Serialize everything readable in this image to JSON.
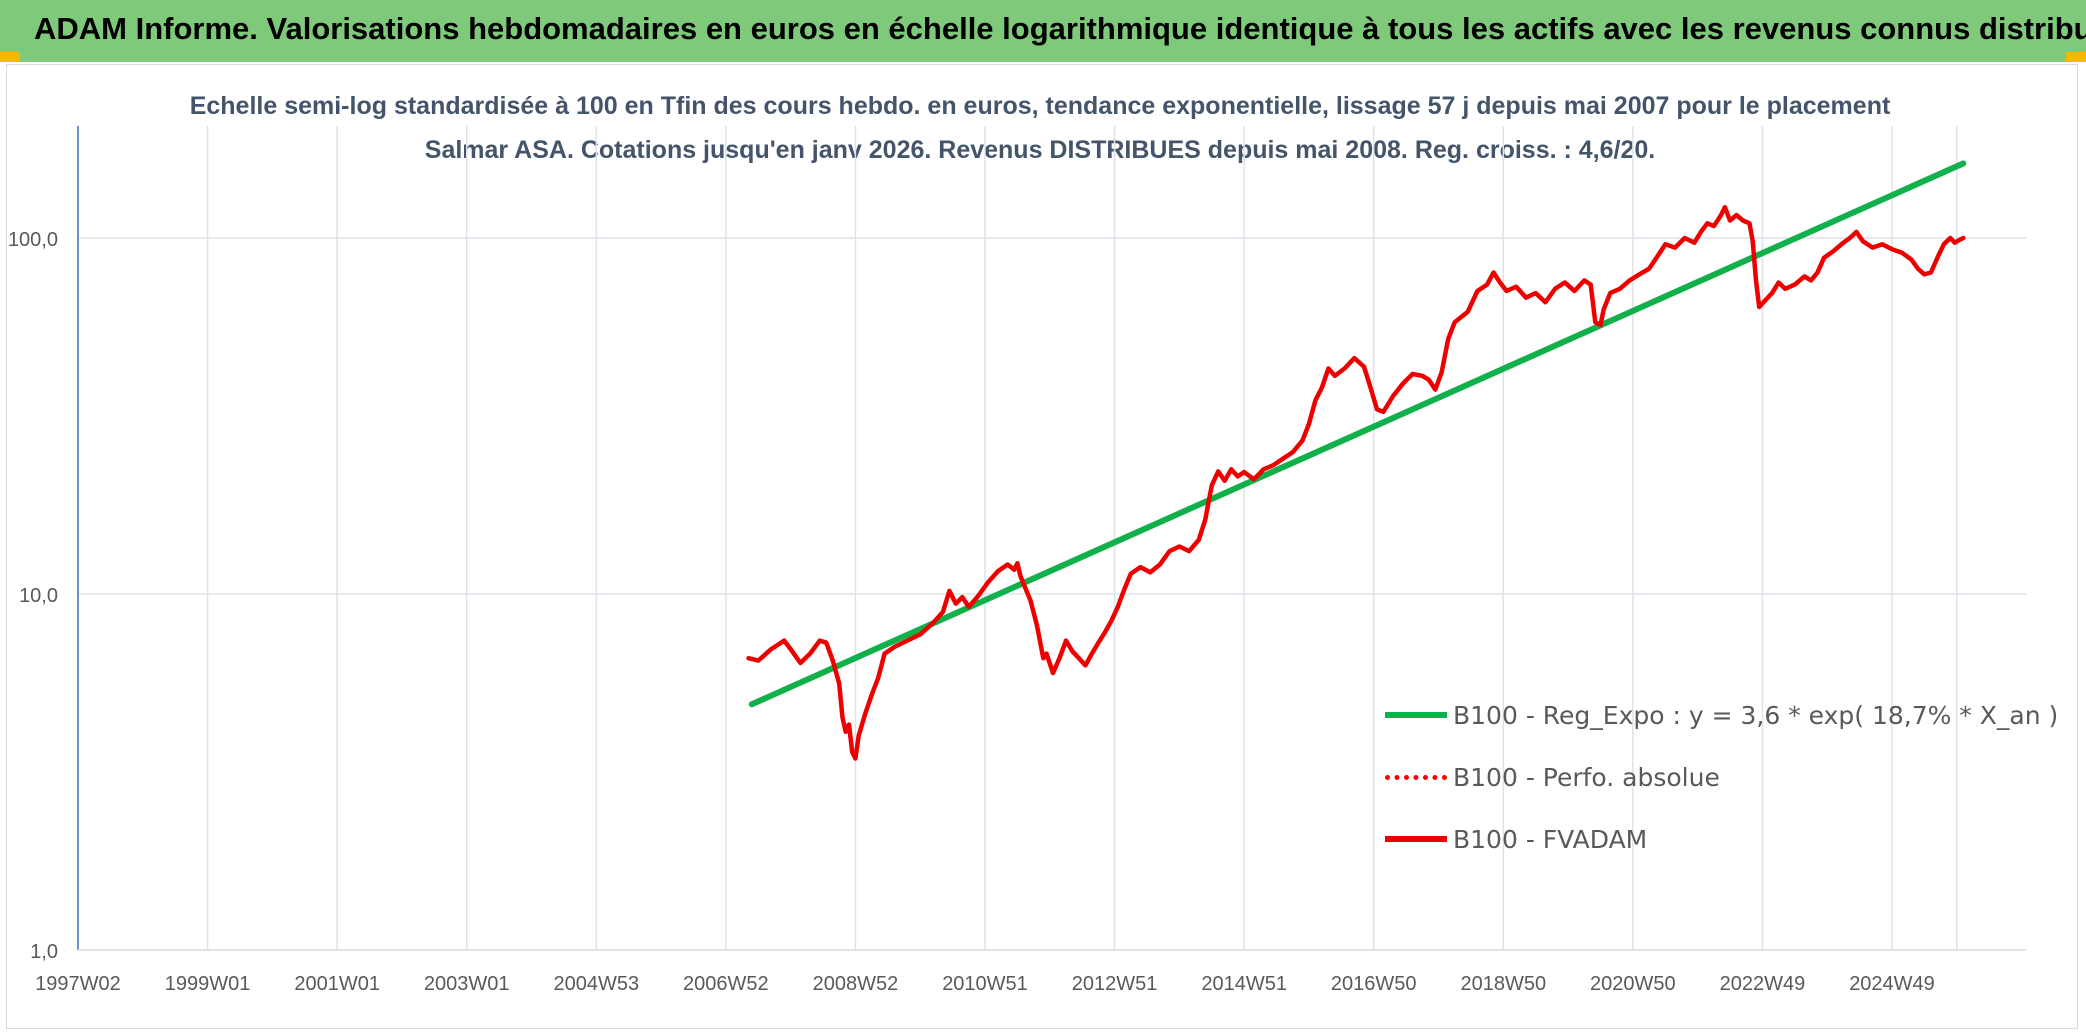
{
  "header": {
    "title": "ADAM Informe. Valorisations hebdomadaires en euros en échelle logarithmique identique à tous les actifs avec les revenus connus distribués"
  },
  "colors": {
    "header_bg": "#7ec97a",
    "trend": "#10b04a",
    "fvadam": "#ee0000",
    "perfo": "#ff0000",
    "grid": "#dde3ea",
    "axis": "#4472c4"
  },
  "chart_data": {
    "type": "line",
    "title": "Echelle semi-log standardisée à 100 en Tfin des cours hebdo. en euros, tendance exponentielle, lissage 57 j depuis mai 2007 pour le placement Salmar ASA. Cotations jusqu'en janv 2026. Revenus DISTRIBUES depuis mai 2008. Reg. croiss. : 4,6/20.",
    "y_scale": "log",
    "ylim": [
      1,
      180
    ],
    "y_ticks": [
      {
        "value": 1,
        "label": "1,0"
      },
      {
        "value": 10,
        "label": "10,0"
      },
      {
        "value": 100,
        "label": "100,0"
      }
    ],
    "xlim": [
      1997.0,
      2026.1
    ],
    "x_tick_labels": [
      "1997W02",
      "1999W01",
      "2001W01",
      "2003W01",
      "2004W53",
      "2006W52",
      "2008W52",
      "2010W51",
      "2012W51",
      "2014W51",
      "2016W50",
      "2018W50",
      "2020W50",
      "2022W49",
      "2024W49"
    ],
    "x_ticks": [
      1997.0,
      1999.0,
      2001.0,
      2003.0,
      2005.0,
      2007.0,
      2009.0,
      2011.0,
      2013.0,
      2015.0,
      2017.0,
      2019.0,
      2021.0,
      2023.0,
      2025.0
    ],
    "x_grid_extra": [
      2026.0
    ],
    "legend_placement": "bottom-right",
    "series": [
      {
        "name": "B100 - Reg_Expo : y = 3,6 * exp( 18,7% *  X_an )",
        "style": "solid-green",
        "points": [
          [
            2007.4,
            4.9
          ],
          [
            2026.1,
            162
          ]
        ]
      },
      {
        "name": "B100 - Perfo. absolue",
        "style": "dotted-red",
        "points": []
      },
      {
        "name": "B100 - FVADAM",
        "style": "solid-red",
        "points": [
          [
            2007.35,
            6.6
          ],
          [
            2007.5,
            6.5
          ],
          [
            2007.7,
            7.0
          ],
          [
            2007.9,
            7.4
          ],
          [
            2008.0,
            7.0
          ],
          [
            2008.15,
            6.4
          ],
          [
            2008.3,
            6.8
          ],
          [
            2008.45,
            7.4
          ],
          [
            2008.55,
            7.3
          ],
          [
            2008.65,
            6.5
          ],
          [
            2008.75,
            5.6
          ],
          [
            2008.8,
            4.5
          ],
          [
            2008.85,
            4.1
          ],
          [
            2008.9,
            4.3
          ],
          [
            2008.95,
            3.6
          ],
          [
            2009.0,
            3.45
          ],
          [
            2009.05,
            4.0
          ],
          [
            2009.15,
            4.6
          ],
          [
            2009.25,
            5.2
          ],
          [
            2009.35,
            5.8
          ],
          [
            2009.45,
            6.8
          ],
          [
            2009.6,
            7.1
          ],
          [
            2009.8,
            7.4
          ],
          [
            2010.0,
            7.7
          ],
          [
            2010.2,
            8.3
          ],
          [
            2010.35,
            8.9
          ],
          [
            2010.45,
            10.2
          ],
          [
            2010.55,
            9.4
          ],
          [
            2010.65,
            9.8
          ],
          [
            2010.75,
            9.2
          ],
          [
            2010.9,
            9.9
          ],
          [
            2011.05,
            10.8
          ],
          [
            2011.2,
            11.6
          ],
          [
            2011.35,
            12.1
          ],
          [
            2011.45,
            11.7
          ],
          [
            2011.5,
            12.2
          ],
          [
            2011.55,
            11.2
          ],
          [
            2011.7,
            9.6
          ],
          [
            2011.8,
            8.2
          ],
          [
            2011.9,
            6.6
          ],
          [
            2011.95,
            6.8
          ],
          [
            2012.05,
            6.0
          ],
          [
            2012.15,
            6.6
          ],
          [
            2012.25,
            7.4
          ],
          [
            2012.35,
            6.9
          ],
          [
            2012.45,
            6.6
          ],
          [
            2012.55,
            6.3
          ],
          [
            2012.65,
            6.8
          ],
          [
            2012.75,
            7.3
          ],
          [
            2012.85,
            7.8
          ],
          [
            2012.95,
            8.4
          ],
          [
            2013.05,
            9.2
          ],
          [
            2013.15,
            10.3
          ],
          [
            2013.25,
            11.4
          ],
          [
            2013.4,
            11.9
          ],
          [
            2013.55,
            11.5
          ],
          [
            2013.7,
            12.1
          ],
          [
            2013.85,
            13.2
          ],
          [
            2014.0,
            13.6
          ],
          [
            2014.15,
            13.2
          ],
          [
            2014.3,
            14.2
          ],
          [
            2014.4,
            16.2
          ],
          [
            2014.5,
            20.2
          ],
          [
            2014.6,
            22.1
          ],
          [
            2014.7,
            20.8
          ],
          [
            2014.8,
            22.4
          ],
          [
            2014.9,
            21.4
          ],
          [
            2015.0,
            22.0
          ],
          [
            2015.15,
            21.0
          ],
          [
            2015.3,
            22.4
          ],
          [
            2015.45,
            23.0
          ],
          [
            2015.6,
            24.0
          ],
          [
            2015.75,
            25.0
          ],
          [
            2015.9,
            27.0
          ],
          [
            2016.0,
            30.0
          ],
          [
            2016.1,
            35.0
          ],
          [
            2016.2,
            38.0
          ],
          [
            2016.3,
            43.0
          ],
          [
            2016.4,
            41.0
          ],
          [
            2016.55,
            43.0
          ],
          [
            2016.7,
            46.0
          ],
          [
            2016.85,
            43.5
          ],
          [
            2016.95,
            38.0
          ],
          [
            2017.05,
            33.0
          ],
          [
            2017.15,
            32.5
          ],
          [
            2017.3,
            36.0
          ],
          [
            2017.45,
            39.0
          ],
          [
            2017.6,
            41.5
          ],
          [
            2017.75,
            41.0
          ],
          [
            2017.85,
            40.0
          ],
          [
            2017.95,
            37.5
          ],
          [
            2018.05,
            42.0
          ],
          [
            2018.15,
            52.0
          ],
          [
            2018.25,
            58.0
          ],
          [
            2018.35,
            60.0
          ],
          [
            2018.45,
            62.0
          ],
          [
            2018.6,
            71.0
          ],
          [
            2018.75,
            74.0
          ],
          [
            2018.85,
            80.0
          ],
          [
            2018.95,
            75.0
          ],
          [
            2019.05,
            71.0
          ],
          [
            2019.2,
            73.0
          ],
          [
            2019.35,
            68.0
          ],
          [
            2019.5,
            70.0
          ],
          [
            2019.65,
            66.0
          ],
          [
            2019.8,
            72.0
          ],
          [
            2019.95,
            75.0
          ],
          [
            2020.1,
            71.0
          ],
          [
            2020.25,
            76.0
          ],
          [
            2020.35,
            74.0
          ],
          [
            2020.42,
            58.0
          ],
          [
            2020.5,
            57.0
          ],
          [
            2020.55,
            63.0
          ],
          [
            2020.65,
            70.0
          ],
          [
            2020.8,
            72.0
          ],
          [
            2020.95,
            76.0
          ],
          [
            2021.1,
            79.0
          ],
          [
            2021.25,
            82.0
          ],
          [
            2021.4,
            90.0
          ],
          [
            2021.5,
            96.0
          ],
          [
            2021.65,
            94.0
          ],
          [
            2021.8,
            100.0
          ],
          [
            2021.95,
            97.0
          ],
          [
            2022.05,
            104.0
          ],
          [
            2022.15,
            110.0
          ],
          [
            2022.25,
            108.0
          ],
          [
            2022.35,
            115.0
          ],
          [
            2022.42,
            122.0
          ],
          [
            2022.5,
            112.0
          ],
          [
            2022.6,
            116.0
          ],
          [
            2022.7,
            112.0
          ],
          [
            2022.8,
            110.0
          ],
          [
            2022.85,
            98.0
          ],
          [
            2022.9,
            76.0
          ],
          [
            2022.95,
            64.0
          ],
          [
            2023.05,
            67.0
          ],
          [
            2023.15,
            70.0
          ],
          [
            2023.25,
            75.0
          ],
          [
            2023.35,
            72.0
          ],
          [
            2023.5,
            74.0
          ],
          [
            2023.65,
            78.0
          ],
          [
            2023.75,
            76.0
          ],
          [
            2023.85,
            80.0
          ],
          [
            2023.95,
            88.0
          ],
          [
            2024.1,
            92.0
          ],
          [
            2024.25,
            97.0
          ],
          [
            2024.35,
            100.0
          ],
          [
            2024.45,
            104.0
          ],
          [
            2024.55,
            98.0
          ],
          [
            2024.7,
            94.0
          ],
          [
            2024.85,
            96.0
          ],
          [
            2025.0,
            93.0
          ],
          [
            2025.15,
            91.0
          ],
          [
            2025.3,
            87.0
          ],
          [
            2025.4,
            82.0
          ],
          [
            2025.5,
            79.0
          ],
          [
            2025.6,
            80.0
          ],
          [
            2025.7,
            88.0
          ],
          [
            2025.8,
            96.0
          ],
          [
            2025.9,
            100.0
          ],
          [
            2025.97,
            97.0
          ],
          [
            2026.05,
            99.0
          ],
          [
            2026.1,
            100.0
          ]
        ]
      }
    ]
  }
}
